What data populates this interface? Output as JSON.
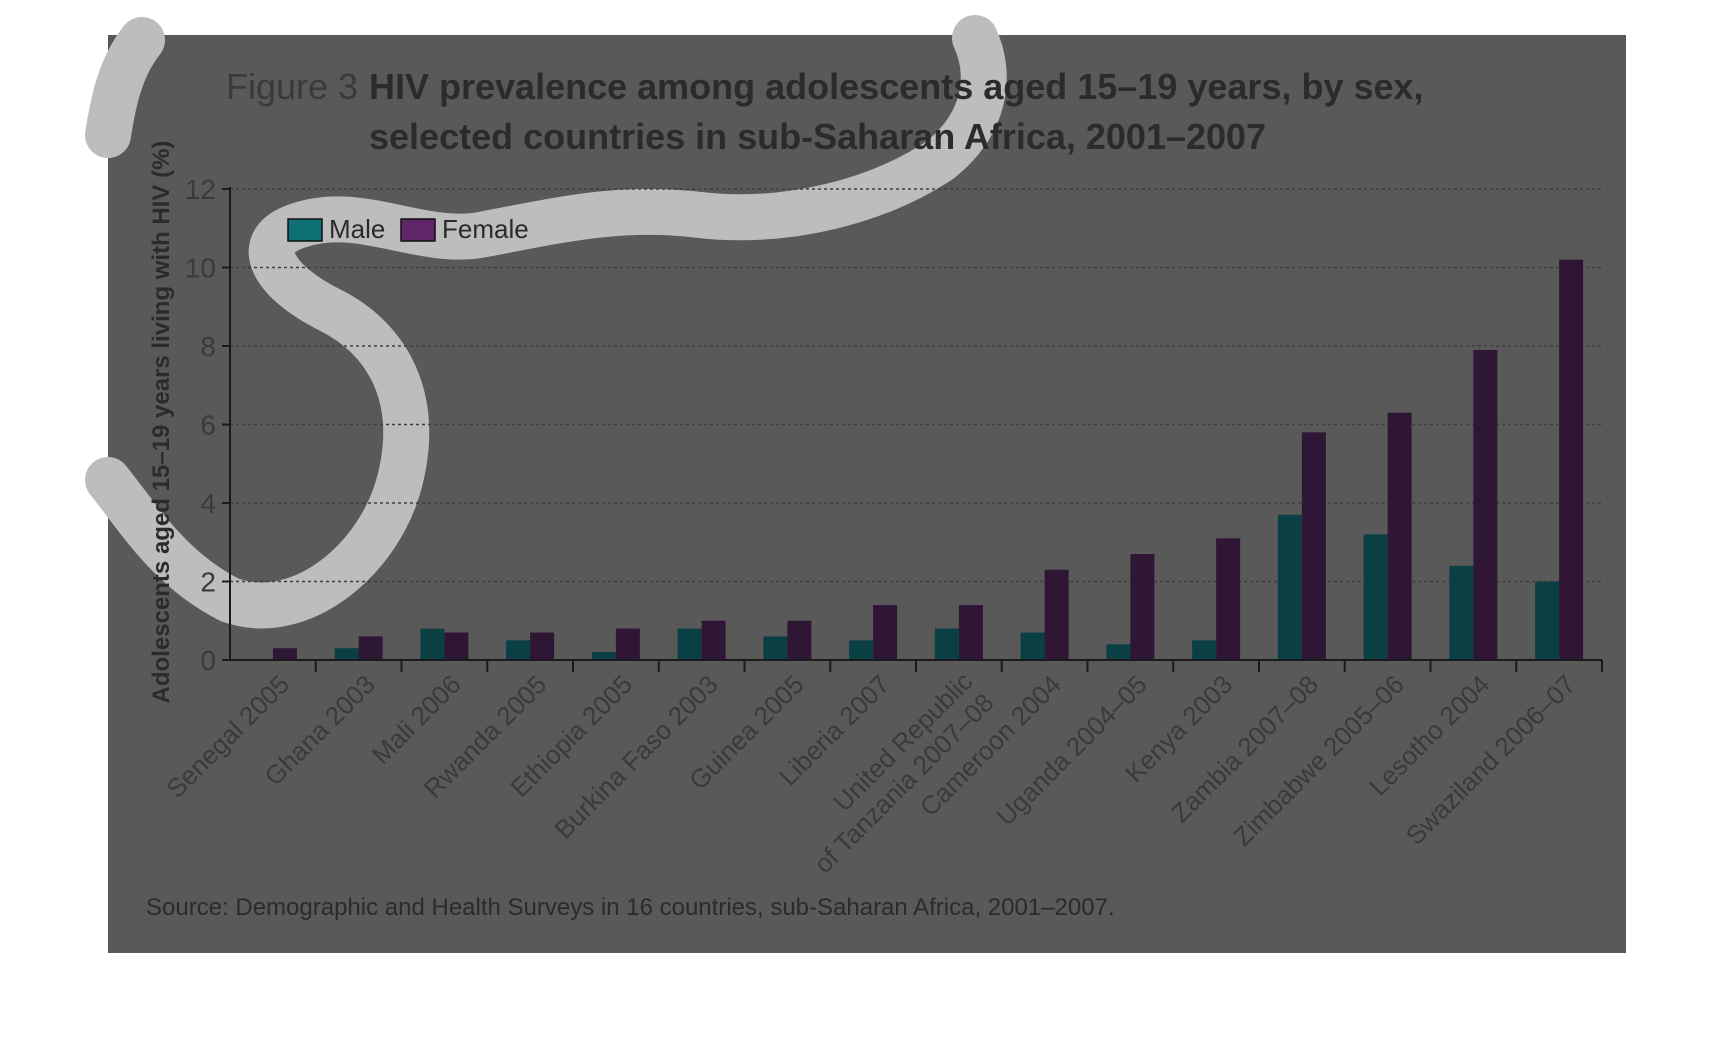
{
  "figure": {
    "number": "Figure 3",
    "title_line1": "HIV prevalence among adolescents aged 15–19 years, by sex,",
    "title_line2": "selected countries in sub-Saharan Africa, 2001–2007",
    "source": "Source: Demographic and Health Surveys in 16 countries, sub-Saharan Africa, 2001–2007."
  },
  "colors": {
    "panel": "#595959",
    "swoosh": "#bdbdbd",
    "male": "#0a3f44",
    "male_legend": "#0e6f75",
    "female": "#2e1634",
    "female_legend": "#5e2569",
    "axis": "#1a1a1a",
    "gridline": "#3f3f3f",
    "text": "#2b2b2b"
  },
  "chart_data": {
    "type": "bar",
    "ylabel": "Adolescents aged 15–19 years living with HIV (%)",
    "xlabel": "",
    "ylim": [
      0,
      12
    ],
    "yticks": [
      "0",
      "2",
      "4",
      "6",
      "8",
      "10",
      "12"
    ],
    "grid": true,
    "legend_position": "top-left",
    "categories": [
      "Senegal 2005",
      "Ghana 2003",
      "Mali 2006",
      "Rwanda 2005",
      "Ethiopia 2005",
      "Burkina Faso 2003",
      "Guinea 2005",
      "Liberia 2007",
      "United Republic\nof Tanzania 2007–08",
      "Cameroon 2004",
      "Uganda 2004–05",
      "Kenya 2003",
      "Zambia 2007–08",
      "Zimbabwe 2005–06",
      "Lesotho 2004",
      "Swaziland 2006–07"
    ],
    "series": [
      {
        "name": "Male",
        "values": [
          0.0,
          0.3,
          0.8,
          0.5,
          0.2,
          0.8,
          0.6,
          0.5,
          0.8,
          0.7,
          0.4,
          0.5,
          3.7,
          3.2,
          2.4,
          2.0
        ]
      },
      {
        "name": "Female",
        "values": [
          0.3,
          0.6,
          0.7,
          0.7,
          0.8,
          1.0,
          1.0,
          1.4,
          1.4,
          2.3,
          2.7,
          3.1,
          5.8,
          6.3,
          7.9,
          10.2
        ]
      }
    ]
  }
}
